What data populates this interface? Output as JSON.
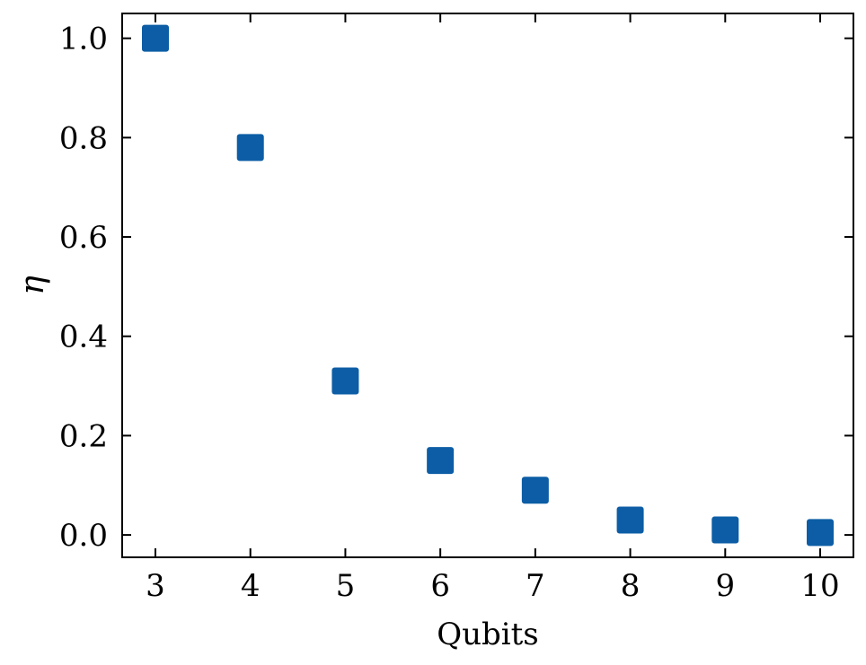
{
  "chart_data": {
    "type": "scatter",
    "xlabel": "Qubits",
    "ylabel": "η",
    "x": [
      3,
      4,
      5,
      6,
      7,
      8,
      9,
      10
    ],
    "y": [
      1.0,
      0.78,
      0.31,
      0.15,
      0.09,
      0.03,
      0.01,
      0.005
    ],
    "xlim": [
      2.65,
      10.35
    ],
    "ylim": [
      -0.045,
      1.05
    ],
    "xticks": [
      3,
      4,
      5,
      6,
      7,
      8,
      9,
      10
    ],
    "xtick_labels": [
      "3",
      "4",
      "5",
      "6",
      "7",
      "8",
      "9",
      "10"
    ],
    "yticks": [
      0.0,
      0.2,
      0.4,
      0.6,
      0.8,
      1.0
    ],
    "ytick_labels": [
      "0.0",
      "0.2",
      "0.4",
      "0.6",
      "0.8",
      "1.0"
    ],
    "marker": "square",
    "color": "#0C5DA5",
    "grid": false,
    "legend": "none"
  }
}
